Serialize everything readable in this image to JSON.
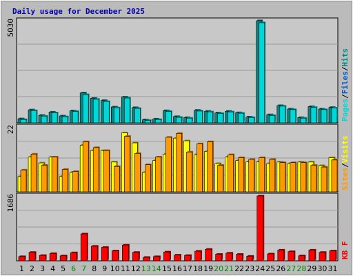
{
  "chart_data": {
    "title": "Daily usage for December 2025",
    "days": [
      "1",
      "2",
      "3",
      "4",
      "5",
      "6",
      "7",
      "8",
      "9",
      "10",
      "11",
      "12",
      "13",
      "14",
      "15",
      "16",
      "17",
      "18",
      "19",
      "20",
      "21",
      "22",
      "23",
      "24",
      "25",
      "26",
      "27",
      "28",
      "29",
      "30",
      "31"
    ],
    "weekend_days": [
      "6",
      "7",
      "13",
      "14",
      "20",
      "21",
      "27",
      "28"
    ],
    "colors": {
      "background": "#bbbbbb",
      "plot_bg": "#c8c8c8",
      "title": "#0000aa",
      "pages": "#00d8d8",
      "files": "#00aaaa",
      "hits": "#008888",
      "visits": "#ffff00",
      "sites": "#ff9900",
      "kbytes": "#ff0000",
      "weekday_label": "#000000",
      "weekend_label": "#008800"
    },
    "panels": [
      {
        "type": "bar",
        "ytick_label": "5030",
        "ymax": 5030,
        "legend": [
          {
            "label": "Pages",
            "color": "#00d8d8"
          },
          {
            "label": "/",
            "color": "#000000"
          },
          {
            "label": "Files",
            "color": "#0055cc"
          },
          {
            "label": "/",
            "color": "#000000"
          },
          {
            "label": "Hits",
            "color": "#008888"
          }
        ],
        "series": [
          {
            "name": "Hits",
            "values": [
              200,
              640,
              370,
              530,
              340,
              590,
              1470,
              1210,
              1100,
              780,
              1270,
              750,
              150,
              190,
              600,
              310,
              260,
              620,
              570,
              490,
              570,
              500,
              290,
              5030,
              400,
              850,
              680,
              260,
              800,
              680,
              760
            ]
          },
          {
            "name": "Files",
            "values": [
              160,
              600,
              330,
              490,
              300,
              560,
              1390,
              1160,
              1050,
              740,
              1220,
              710,
              120,
              160,
              560,
              270,
              230,
              580,
              540,
              460,
              540,
              470,
              260,
              4930,
              360,
              820,
              650,
              230,
              760,
              650,
              730
            ]
          }
        ]
      },
      {
        "type": "bar",
        "ytick_label": "22",
        "ymax": 22,
        "legend": [
          {
            "label": "Sites",
            "color": "#ff9900"
          },
          {
            "label": "/",
            "color": "#000000"
          },
          {
            "label": "Visits",
            "color": "#ffff00"
          }
        ],
        "series": [
          {
            "name": "Visits",
            "values": [
              5.2,
              11.8,
              9.8,
              11.8,
              5.2,
              6.6,
              15.8,
              14.0,
              14.0,
              10.1,
              20.0,
              16.6,
              6.6,
              10.6,
              12.8,
              18.2,
              17.3,
              12.6,
              13.7,
              9.6,
              11.8,
              10.6,
              10.2,
              10.2,
              9.6,
              10.1,
              9.6,
              10.1,
              10.1,
              8.9,
              11.6
            ]
          },
          {
            "name": "Sites",
            "values": [
              7.4,
              12.8,
              9.0,
              11.8,
              7.6,
              6.9,
              17.0,
              15.0,
              14.0,
              8.6,
              18.8,
              13.0,
              9.2,
              11.8,
              18.5,
              19.8,
              13.5,
              16.3,
              17.0,
              9.0,
              12.6,
              11.6,
              11.0,
              11.6,
              11.0,
              9.9,
              9.9,
              9.9,
              9.0,
              8.4,
              10.8
            ]
          }
        ]
      },
      {
        "type": "bar",
        "ytick_label": "1686",
        "ymax": 1686,
        "legend": [
          {
            "label": "KB F",
            "color": "#ff0000"
          }
        ],
        "series": [
          {
            "name": "KB F",
            "values": [
              110,
              220,
              140,
              190,
              130,
              210,
              700,
              380,
              350,
              260,
              410,
              220,
              90,
              110,
              230,
              150,
              140,
              250,
              300,
              170,
              200,
              170,
              120,
              1686,
              180,
              280,
              240,
              130,
              280,
              220,
              260
            ]
          }
        ]
      }
    ]
  }
}
